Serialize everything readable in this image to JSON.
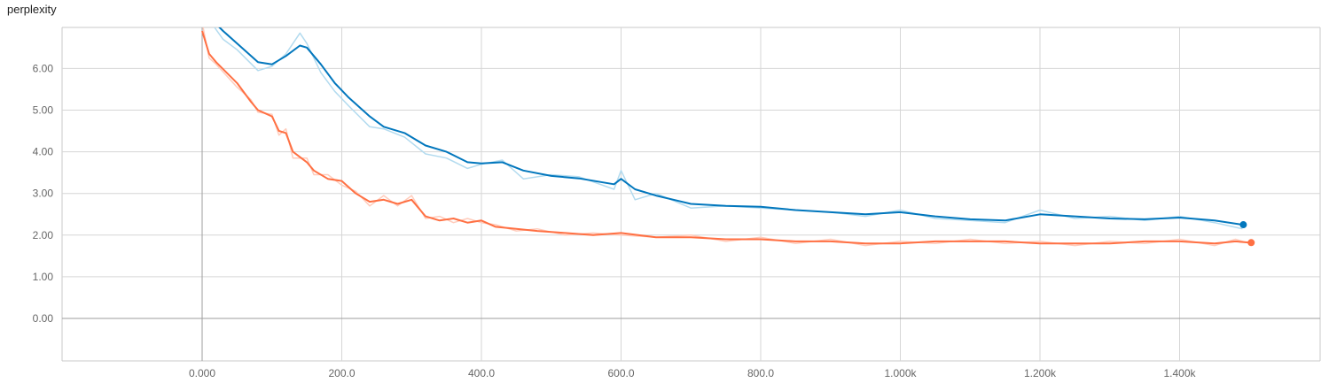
{
  "chart_data": {
    "type": "line",
    "title": "perplexity",
    "xlabel": "",
    "ylabel": "",
    "xlim": [
      -200,
      1600
    ],
    "ylim": [
      -1.0,
      7.0
    ],
    "x_ticks": [
      {
        "value": 0,
        "label": "0.000"
      },
      {
        "value": 200,
        "label": "200.0"
      },
      {
        "value": 400,
        "label": "400.0"
      },
      {
        "value": 600,
        "label": "600.0"
      },
      {
        "value": 800,
        "label": "800.0"
      },
      {
        "value": 1000,
        "label": "1.000k"
      },
      {
        "value": 1200,
        "label": "1.200k"
      },
      {
        "value": 1400,
        "label": "1.400k"
      }
    ],
    "y_ticks": [
      {
        "value": 0,
        "label": "0.00"
      },
      {
        "value": 1,
        "label": "1.00"
      },
      {
        "value": 2,
        "label": "2.00"
      },
      {
        "value": 3,
        "label": "3.00"
      },
      {
        "value": 4,
        "label": "4.00"
      },
      {
        "value": 5,
        "label": "5.00"
      },
      {
        "value": 6,
        "label": "6.00"
      }
    ],
    "grid": true,
    "series": [
      {
        "color": "#0277bd",
        "raw_color": "#b3dbef",
        "x": [
          0,
          30,
          50,
          80,
          100,
          120,
          140,
          150,
          170,
          190,
          210,
          240,
          260,
          290,
          320,
          350,
          380,
          400,
          430,
          460,
          500,
          540,
          590,
          600,
          620,
          650,
          700,
          750,
          800,
          850,
          900,
          950,
          1000,
          1050,
          1100,
          1150,
          1200,
          1250,
          1300,
          1350,
          1400,
          1450,
          1490
        ],
        "values": [
          7.4,
          6.9,
          6.6,
          6.15,
          6.1,
          6.3,
          6.55,
          6.5,
          6.1,
          5.65,
          5.3,
          4.85,
          4.6,
          4.45,
          4.15,
          4.0,
          3.75,
          3.72,
          3.75,
          3.55,
          3.42,
          3.36,
          3.22,
          3.35,
          3.1,
          2.95,
          2.75,
          2.7,
          2.68,
          2.6,
          2.55,
          2.5,
          2.55,
          2.45,
          2.38,
          2.35,
          2.5,
          2.45,
          2.4,
          2.38,
          2.42,
          2.35,
          2.25
        ],
        "raw_values": [
          7.4,
          6.7,
          6.45,
          5.95,
          6.05,
          6.35,
          6.85,
          6.6,
          5.9,
          5.45,
          5.1,
          4.6,
          4.55,
          4.35,
          3.95,
          3.85,
          3.6,
          3.7,
          3.8,
          3.35,
          3.45,
          3.4,
          3.1,
          3.55,
          2.85,
          3.0,
          2.65,
          2.7,
          2.65,
          2.6,
          2.55,
          2.45,
          2.6,
          2.4,
          2.35,
          2.3,
          2.6,
          2.4,
          2.45,
          2.35,
          2.45,
          2.3,
          2.15
        ]
      },
      {
        "color": "#ff7043",
        "raw_color": "#ffccbc",
        "x": [
          0,
          10,
          20,
          50,
          70,
          80,
          100,
          110,
          120,
          130,
          150,
          160,
          180,
          200,
          220,
          240,
          260,
          280,
          300,
          320,
          340,
          360,
          380,
          400,
          420,
          450,
          480,
          520,
          560,
          600,
          650,
          700,
          750,
          800,
          850,
          900,
          950,
          1000,
          1050,
          1100,
          1150,
          1200,
          1250,
          1300,
          1350,
          1400,
          1450,
          1480,
          1500
        ],
        "values": [
          6.9,
          6.35,
          6.15,
          5.65,
          5.2,
          5.0,
          4.85,
          4.5,
          4.45,
          4.0,
          3.75,
          3.55,
          3.35,
          3.3,
          3.0,
          2.8,
          2.85,
          2.75,
          2.85,
          2.45,
          2.35,
          2.4,
          2.3,
          2.35,
          2.2,
          2.15,
          2.1,
          2.05,
          2.0,
          2.05,
          1.95,
          1.95,
          1.9,
          1.9,
          1.85,
          1.85,
          1.8,
          1.8,
          1.85,
          1.85,
          1.85,
          1.8,
          1.8,
          1.8,
          1.85,
          1.85,
          1.8,
          1.85,
          1.82
        ],
        "raw_values": [
          7.1,
          6.25,
          6.1,
          5.55,
          5.25,
          4.95,
          4.9,
          4.4,
          4.55,
          3.85,
          3.85,
          3.45,
          3.45,
          3.2,
          3.05,
          2.7,
          2.95,
          2.7,
          2.95,
          2.4,
          2.45,
          2.3,
          2.4,
          2.3,
          2.25,
          2.1,
          2.15,
          2.0,
          2.05,
          2.0,
          1.95,
          2.0,
          1.85,
          1.95,
          1.8,
          1.9,
          1.75,
          1.85,
          1.8,
          1.9,
          1.8,
          1.85,
          1.75,
          1.85,
          1.8,
          1.9,
          1.75,
          1.9,
          1.8
        ]
      }
    ]
  }
}
